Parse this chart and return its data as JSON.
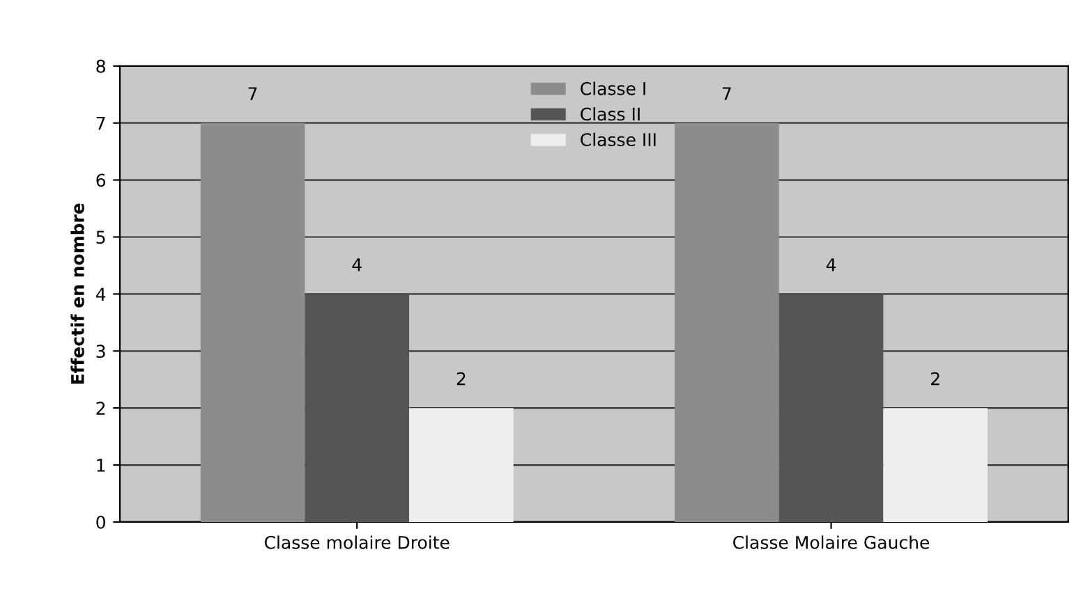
{
  "chart_data": {
    "type": "bar",
    "ylabel": "Effectif en nombre",
    "categories": [
      "Classe molaire Droite",
      "Classe Molaire Gauche"
    ],
    "series": [
      {
        "name": "Classe I",
        "color": "#8c8c8c",
        "values": [
          7,
          7
        ]
      },
      {
        "name": "Class II",
        "color": "#555555",
        "values": [
          4,
          4
        ]
      },
      {
        "name": "Classe III",
        "color": "#eeeeee",
        "values": [
          2,
          2
        ]
      }
    ],
    "ylim": [
      0,
      8
    ],
    "yticks": [
      0,
      1,
      2,
      3,
      4,
      5,
      6,
      7,
      8
    ],
    "grid": "y",
    "legend": "top",
    "data_labels": true
  }
}
